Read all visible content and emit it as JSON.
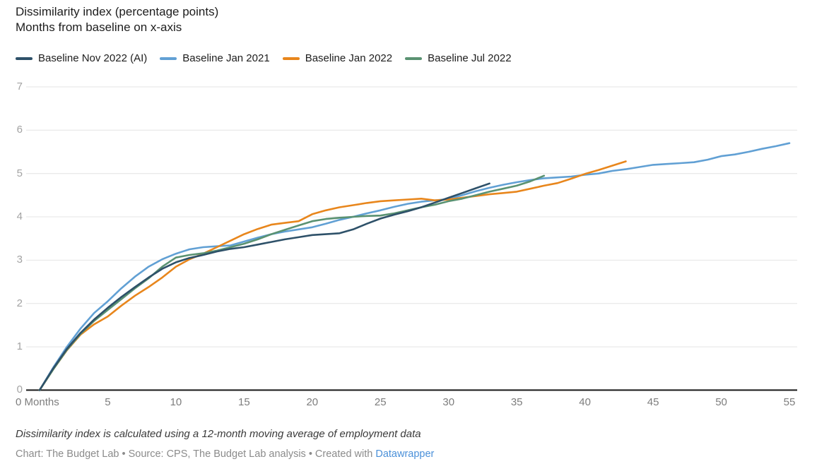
{
  "header": {
    "title": "Dissimilarity index (percentage points)",
    "subtitle": "Months from baseline on x-axis"
  },
  "footer": {
    "note": "Dissimilarity index is calculated using a 12-month moving average of employment data",
    "credit_prefix": "Chart: The Budget Lab • Source: CPS, The Budget Lab analysis • Created with ",
    "credit_link": "Datawrapper"
  },
  "colors": {
    "grid": "#e4e4e4",
    "axis": "#161616",
    "y_tick_label": "#a3a3a3",
    "x_tick_label": "#7d7d7d",
    "link": "#4a90d9"
  },
  "chart_data": {
    "type": "line",
    "title": "Dissimilarity index (percentage points)",
    "subtitle": "Months from baseline on x-axis",
    "xlabel": "Months from baseline",
    "ylabel": "Dissimilarity index (percentage points)",
    "xlim": [
      0,
      55
    ],
    "ylim": [
      0,
      7
    ],
    "grid": "horizontal",
    "legend_position": "top",
    "y_ticks": [
      0,
      1,
      2,
      3,
      4,
      5,
      6,
      7
    ],
    "x_ticks": [
      {
        "v": 0,
        "label": "0 Months"
      },
      {
        "v": 5,
        "label": "5"
      },
      {
        "v": 10,
        "label": "10"
      },
      {
        "v": 15,
        "label": "15"
      },
      {
        "v": 20,
        "label": "20"
      },
      {
        "v": 25,
        "label": "25"
      },
      {
        "v": 30,
        "label": "30"
      },
      {
        "v": 35,
        "label": "35"
      },
      {
        "v": 40,
        "label": "40"
      },
      {
        "v": 45,
        "label": "45"
      },
      {
        "v": 50,
        "label": "50"
      },
      {
        "v": 55,
        "label": "55"
      }
    ],
    "series": [
      {
        "id": "nov-2022-ai",
        "name": "Baseline Nov 2022 (AI)",
        "color": "#2e5169",
        "z": 4,
        "points": [
          [
            0,
            0
          ],
          [
            1,
            0.5
          ],
          [
            2,
            0.95
          ],
          [
            3,
            1.32
          ],
          [
            4,
            1.63
          ],
          [
            5,
            1.9
          ],
          [
            6,
            2.15
          ],
          [
            7,
            2.38
          ],
          [
            8,
            2.6
          ],
          [
            9,
            2.8
          ],
          [
            10,
            2.95
          ],
          [
            11,
            3.05
          ],
          [
            12,
            3.12
          ],
          [
            13,
            3.2
          ],
          [
            14,
            3.26
          ],
          [
            15,
            3.3
          ],
          [
            16,
            3.36
          ],
          [
            17,
            3.42
          ],
          [
            18,
            3.48
          ],
          [
            19,
            3.53
          ],
          [
            20,
            3.58
          ],
          [
            21,
            3.6
          ],
          [
            22,
            3.62
          ],
          [
            23,
            3.71
          ],
          [
            24,
            3.84
          ],
          [
            25,
            3.96
          ],
          [
            26,
            4.05
          ],
          [
            27,
            4.13
          ],
          [
            28,
            4.22
          ],
          [
            29,
            4.33
          ],
          [
            30,
            4.44
          ],
          [
            31,
            4.55
          ],
          [
            32,
            4.66
          ],
          [
            33,
            4.77
          ]
        ]
      },
      {
        "id": "jan-2021",
        "name": "Baseline Jan 2021",
        "color": "#61a0d4",
        "z": 1,
        "points": [
          [
            0,
            0
          ],
          [
            1,
            0.52
          ],
          [
            2,
            1.0
          ],
          [
            3,
            1.42
          ],
          [
            4,
            1.78
          ],
          [
            5,
            2.05
          ],
          [
            6,
            2.35
          ],
          [
            7,
            2.62
          ],
          [
            8,
            2.85
          ],
          [
            9,
            3.02
          ],
          [
            10,
            3.15
          ],
          [
            11,
            3.25
          ],
          [
            12,
            3.3
          ],
          [
            13,
            3.32
          ],
          [
            14,
            3.34
          ],
          [
            15,
            3.43
          ],
          [
            16,
            3.52
          ],
          [
            17,
            3.6
          ],
          [
            18,
            3.66
          ],
          [
            19,
            3.71
          ],
          [
            20,
            3.76
          ],
          [
            21,
            3.84
          ],
          [
            22,
            3.93
          ],
          [
            23,
            4.0
          ],
          [
            24,
            4.08
          ],
          [
            25,
            4.15
          ],
          [
            26,
            4.23
          ],
          [
            27,
            4.3
          ],
          [
            28,
            4.35
          ],
          [
            29,
            4.38
          ],
          [
            30,
            4.41
          ],
          [
            31,
            4.5
          ],
          [
            32,
            4.59
          ],
          [
            33,
            4.67
          ],
          [
            34,
            4.74
          ],
          [
            35,
            4.8
          ],
          [
            36,
            4.85
          ],
          [
            37,
            4.89
          ],
          [
            38,
            4.91
          ],
          [
            39,
            4.93
          ],
          [
            40,
            4.97
          ],
          [
            41,
            5.0
          ],
          [
            42,
            5.06
          ],
          [
            43,
            5.1
          ],
          [
            44,
            5.15
          ],
          [
            45,
            5.2
          ],
          [
            46,
            5.22
          ],
          [
            47,
            5.24
          ],
          [
            48,
            5.26
          ],
          [
            49,
            5.32
          ],
          [
            50,
            5.4
          ],
          [
            51,
            5.44
          ],
          [
            52,
            5.5
          ],
          [
            53,
            5.57
          ],
          [
            54,
            5.63
          ],
          [
            55,
            5.7
          ]
        ]
      },
      {
        "id": "jan-2022",
        "name": "Baseline Jan 2022",
        "color": "#e8861c",
        "z": 2,
        "points": [
          [
            0,
            0
          ],
          [
            1,
            0.48
          ],
          [
            2,
            0.92
          ],
          [
            3,
            1.28
          ],
          [
            4,
            1.52
          ],
          [
            5,
            1.7
          ],
          [
            6,
            1.95
          ],
          [
            7,
            2.18
          ],
          [
            8,
            2.38
          ],
          [
            9,
            2.6
          ],
          [
            10,
            2.85
          ],
          [
            11,
            3.02
          ],
          [
            12,
            3.15
          ],
          [
            13,
            3.3
          ],
          [
            14,
            3.45
          ],
          [
            15,
            3.6
          ],
          [
            16,
            3.72
          ],
          [
            17,
            3.82
          ],
          [
            18,
            3.86
          ],
          [
            19,
            3.9
          ],
          [
            20,
            4.06
          ],
          [
            21,
            4.15
          ],
          [
            22,
            4.22
          ],
          [
            23,
            4.27
          ],
          [
            24,
            4.32
          ],
          [
            25,
            4.36
          ],
          [
            26,
            4.38
          ],
          [
            27,
            4.4
          ],
          [
            28,
            4.42
          ],
          [
            29,
            4.38
          ],
          [
            30,
            4.4
          ],
          [
            31,
            4.44
          ],
          [
            32,
            4.48
          ],
          [
            33,
            4.52
          ],
          [
            34,
            4.55
          ],
          [
            35,
            4.58
          ],
          [
            36,
            4.65
          ],
          [
            37,
            4.72
          ],
          [
            38,
            4.78
          ],
          [
            39,
            4.88
          ],
          [
            40,
            4.99
          ],
          [
            41,
            5.08
          ],
          [
            42,
            5.18
          ],
          [
            43,
            5.28
          ]
        ]
      },
      {
        "id": "jul-2022",
        "name": "Baseline Jul 2022",
        "color": "#5a9272",
        "z": 3,
        "points": [
          [
            0,
            0
          ],
          [
            1,
            0.48
          ],
          [
            2,
            0.93
          ],
          [
            3,
            1.3
          ],
          [
            4,
            1.6
          ],
          [
            5,
            1.85
          ],
          [
            6,
            2.1
          ],
          [
            7,
            2.35
          ],
          [
            8,
            2.58
          ],
          [
            9,
            2.85
          ],
          [
            10,
            3.06
          ],
          [
            11,
            3.12
          ],
          [
            12,
            3.16
          ],
          [
            13,
            3.22
          ],
          [
            14,
            3.3
          ],
          [
            15,
            3.38
          ],
          [
            16,
            3.48
          ],
          [
            17,
            3.6
          ],
          [
            18,
            3.7
          ],
          [
            19,
            3.8
          ],
          [
            20,
            3.9
          ],
          [
            21,
            3.95
          ],
          [
            22,
            3.98
          ],
          [
            23,
            4.0
          ],
          [
            24,
            4.02
          ],
          [
            25,
            4.03
          ],
          [
            26,
            4.08
          ],
          [
            27,
            4.15
          ],
          [
            28,
            4.22
          ],
          [
            29,
            4.28
          ],
          [
            30,
            4.36
          ],
          [
            31,
            4.42
          ],
          [
            32,
            4.5
          ],
          [
            33,
            4.58
          ],
          [
            34,
            4.65
          ],
          [
            35,
            4.72
          ],
          [
            36,
            4.82
          ],
          [
            37,
            4.95
          ]
        ]
      }
    ]
  }
}
